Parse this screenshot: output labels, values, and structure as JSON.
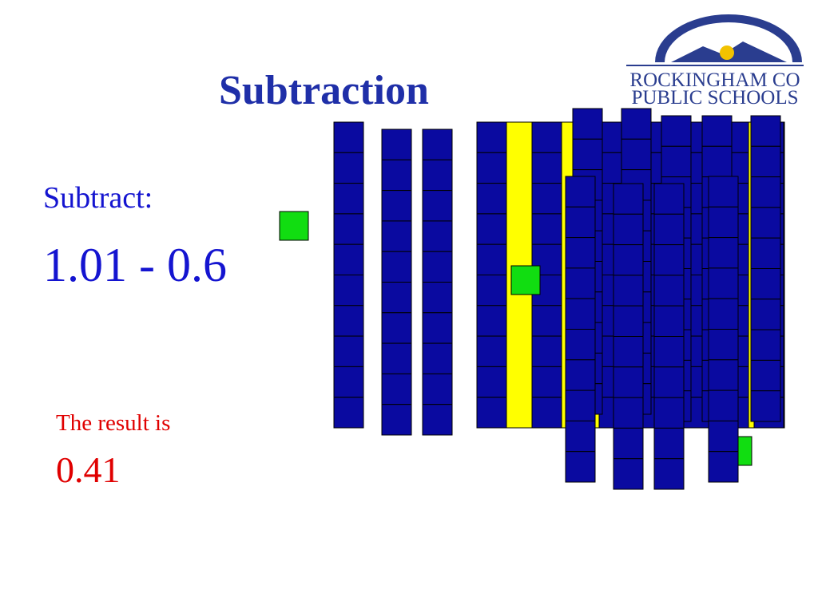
{
  "slide": {
    "title": "Subtraction",
    "prompt": "Subtract:",
    "expression": "1.01 - 0.6",
    "result_label": "The result is",
    "result": "0.41"
  },
  "logo": {
    "line1": "ROCKINGHAM CO",
    "line2": "PUBLIC SCHOOLS"
  }
}
